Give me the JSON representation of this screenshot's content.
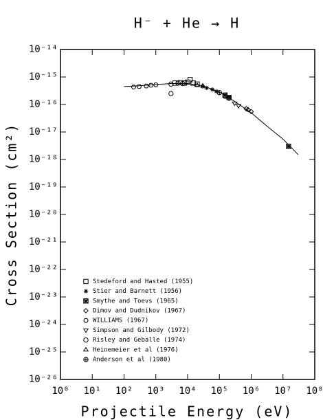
{
  "chart_data": {
    "type": "scatter",
    "title": "H⁻ + He → H",
    "x_label": "Projectile Energy (eV)",
    "y_label": "Cross Section (cm²)",
    "xscale": "log",
    "yscale": "log",
    "xlim": [
      1,
      100000000
    ],
    "ylim": [
      1e-26,
      1e-14
    ],
    "xticks": [
      {
        "value": 1,
        "label": "10⁰"
      },
      {
        "value": 10,
        "label": "10¹"
      },
      {
        "value": 100,
        "label": "10²"
      },
      {
        "value": 1000,
        "label": "10³"
      },
      {
        "value": 10000,
        "label": "10⁴"
      },
      {
        "value": 100000,
        "label": "10⁵"
      },
      {
        "value": 1000000,
        "label": "10⁶"
      },
      {
        "value": 10000000,
        "label": "10⁷"
      },
      {
        "value": 100000000,
        "label": "10⁸"
      }
    ],
    "yticks": [
      {
        "value": 1e-26,
        "label": "10⁻²⁶"
      },
      {
        "value": 1e-25,
        "label": "10⁻²⁵"
      },
      {
        "value": 1e-24,
        "label": "10⁻²⁴"
      },
      {
        "value": 1e-23,
        "label": "10⁻²³"
      },
      {
        "value": 1e-22,
        "label": "10⁻²²"
      },
      {
        "value": 1e-21,
        "label": "10⁻²¹"
      },
      {
        "value": 1e-20,
        "label": "10⁻²⁰"
      },
      {
        "value": 1e-19,
        "label": "10⁻¹⁹"
      },
      {
        "value": 1e-18,
        "label": "10⁻¹⁸"
      },
      {
        "value": 1e-17,
        "label": "10⁻¹⁷"
      },
      {
        "value": 1e-16,
        "label": "10⁻¹⁶"
      },
      {
        "value": 1e-15,
        "label": "10⁻¹⁵"
      },
      {
        "value": 1e-14,
        "label": "10⁻¹⁴"
      }
    ],
    "legend": "lower left",
    "curve": {
      "color": "#000000",
      "x": [
        100,
        300,
        1000,
        3000,
        10000,
        30000,
        100000,
        300000,
        1000000,
        3000000,
        10000000,
        30000000
      ],
      "values": [
        4.5e-16,
        4.8e-16,
        5.3e-16,
        5.8e-16,
        5.8e-16,
        4.8e-16,
        2.8e-16,
        1.3e-16,
        5e-17,
        1.7e-17,
        5.5e-18,
        1.5e-18
      ]
    },
    "series": [
      {
        "name": "Stedeford and Hasted (1955)",
        "marker": "square",
        "color": "#000000",
        "x": [
          4000,
          6000,
          8000,
          10000,
          12000,
          15000,
          20000
        ],
        "values": [
          6e-16,
          6.2e-16,
          6e-16,
          6.5e-16,
          8e-16,
          6e-16,
          5.5e-16
        ]
      },
      {
        "name": "Stier and Barnett (1956)",
        "marker": "asterisk",
        "color": "#000000",
        "x": [
          30000,
          40000,
          60000,
          80000
        ],
        "values": [
          4.5e-16,
          4e-16,
          3.5e-16,
          3e-16
        ]
      },
      {
        "name": "Smythe and Toevs (1965)",
        "marker": "boxcross",
        "color": "#000000",
        "x": [
          150000,
          200000,
          15000000
        ],
        "values": [
          2.2e-16,
          1.8e-16,
          3e-18
        ]
      },
      {
        "name": "Dimov and Dudnikov (1967)",
        "marker": "diamond",
        "color": "#000000",
        "x": [
          700000,
          800000,
          1000000
        ],
        "values": [
          7e-17,
          6.5e-17,
          5.5e-17
        ]
      },
      {
        "name": "WILLIAMS (1967)",
        "marker": "hexagon",
        "color": "#000000",
        "x": [
          200,
          300,
          500,
          700,
          1000
        ],
        "values": [
          4.3e-16,
          4.5e-16,
          4.7e-16,
          5e-16,
          5.2e-16
        ]
      },
      {
        "name": "Simpson and Gilbody (1972)",
        "marker": "tri-down",
        "color": "#000000",
        "x": [
          300000,
          400000
        ],
        "values": [
          1.1e-16,
          9e-17
        ]
      },
      {
        "name": "Risley and Geballe (1974)",
        "marker": "circle",
        "color": "#000000",
        "x": [
          3000,
          3000,
          5000,
          7000
        ],
        "values": [
          2.5e-16,
          5.5e-16,
          6e-16,
          5.8e-16
        ]
      },
      {
        "name": "Heinemeier et al (1976)",
        "marker": "tri-up",
        "color": "#000000",
        "x": [
          20000,
          30000
        ],
        "values": [
          5e-16,
          4.8e-16
        ]
      },
      {
        "name": "Anderson et al (1980)",
        "marker": "circlecross",
        "color": "#000000",
        "x": [
          100000,
          150000,
          200000
        ],
        "values": [
          2.7e-16,
          2e-16,
          1.7e-16
        ]
      }
    ]
  }
}
